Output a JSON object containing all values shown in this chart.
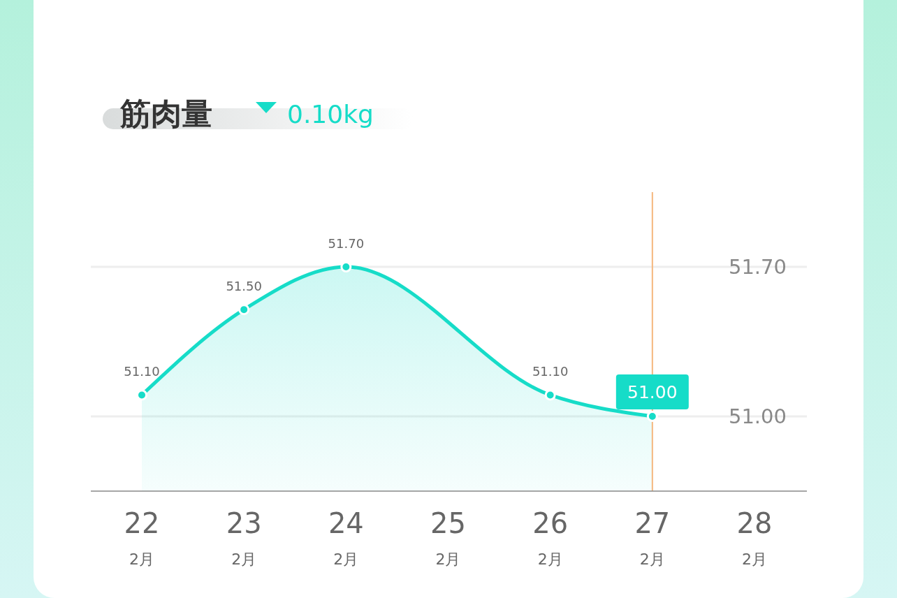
{
  "chart_data": {
    "type": "area",
    "title": "筋肉量",
    "subtitle": "0.10kg",
    "categories": [
      "22\n2月",
      "23\n2月",
      "24\n2月",
      "25\n2月",
      "26\n2月",
      "27\n2月",
      "28\n2月"
    ],
    "series": [
      {
        "color": "#16dcc8",
        "values": [
          51.1,
          51.5,
          51.7,
          null,
          51.1,
          51.0,
          null
        ],
        "value_labels": [
          "51.10",
          "51.50",
          "51.70",
          null,
          "51.10",
          "51.00",
          null
        ]
      }
    ],
    "yticks": [
      {
        "value": 51.0,
        "label": "51.00"
      },
      {
        "value": 51.7,
        "label": "51.70"
      }
    ],
    "ylim": [
      50.65,
      52.05
    ],
    "grid": "y",
    "marker": "circle",
    "ref_lines": [
      {
        "axis": "x",
        "value": "27\n2月",
        "color": "#f5b77e"
      }
    ]
  }
}
